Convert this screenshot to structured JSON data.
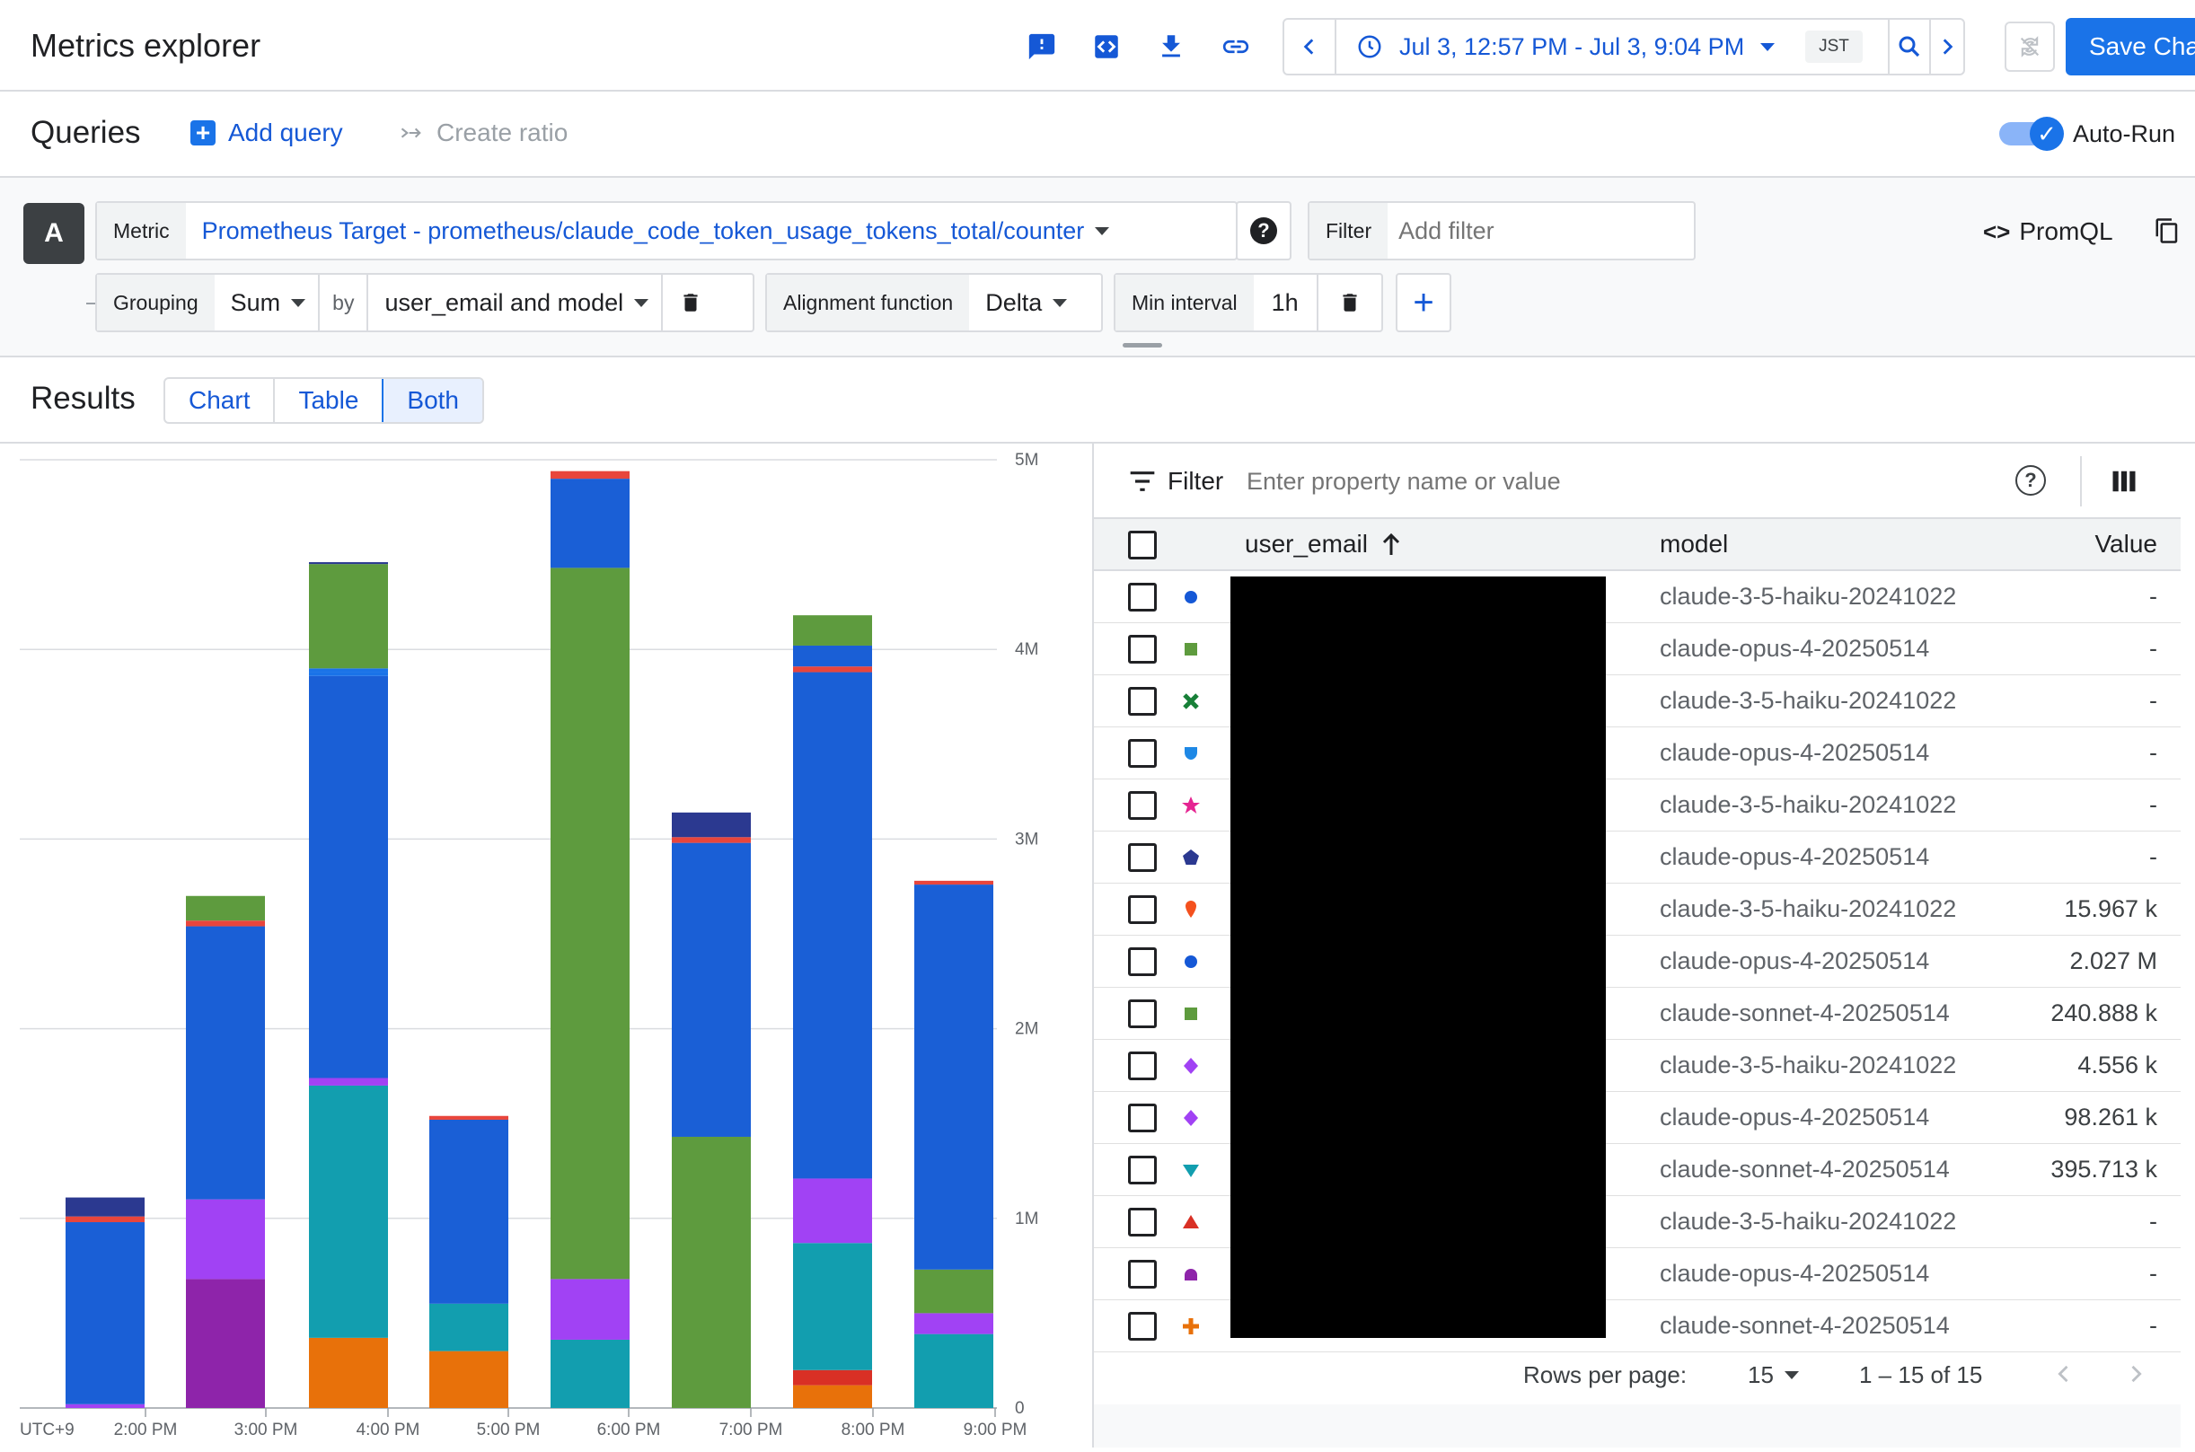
{
  "header": {
    "title": "Metrics explorer",
    "time_range": "Jul 3, 12:57 PM - Jul 3, 9:04 PM",
    "timezone": "JST",
    "save_label": "Save Chart"
  },
  "queries_bar": {
    "title": "Queries",
    "add_query": "Add query",
    "create_ratio": "Create ratio",
    "auto_run": "Auto-Run",
    "auto_run_on": true
  },
  "query": {
    "letter": "A",
    "metric_label": "Metric",
    "metric_value": "Prometheus Target - prometheus/claude_code_token_usage_tokens_total/counter",
    "filter_label": "Filter",
    "filter_placeholder": "Add filter",
    "promql": "PromQL",
    "grouping_label": "Grouping",
    "grouping_value": "Sum",
    "by_label": "by",
    "by_value": "user_email and model",
    "alignment_label": "Alignment function",
    "alignment_value": "Delta",
    "min_interval_label": "Min interval",
    "min_interval_value": "1h"
  },
  "results": {
    "title": "Results",
    "views": [
      "Chart",
      "Table",
      "Both"
    ],
    "selected_view": "Both"
  },
  "chart_data": {
    "type": "bar",
    "stacked": true,
    "categories": [
      "2:00 PM-",
      "2:00 PM",
      "3:00 PM",
      "4:00 PM",
      "5:00 PM",
      "6:00 PM",
      "7:00 PM",
      "8:00 PM",
      "9:00 PM"
    ],
    "x_tick_labels": [
      "UTC+9",
      "2:00 PM",
      "3:00 PM",
      "4:00 PM",
      "5:00 PM",
      "6:00 PM",
      "7:00 PM",
      "8:00 PM",
      "9:00 PM"
    ],
    "y_tick_labels": [
      "0",
      "1M",
      "2M",
      "3M",
      "4M",
      "5M"
    ],
    "ylim": [
      0,
      5000000
    ],
    "grid": true,
    "series": [
      {
        "color": "#e8710a",
        "values": [
          0,
          0,
          370000,
          300000,
          0,
          0,
          120000,
          0,
          0
        ]
      },
      {
        "color": "#d93025",
        "values": [
          0,
          0,
          0,
          0,
          0,
          0,
          80000,
          0,
          0
        ]
      },
      {
        "color": "#129eaf",
        "values": [
          0,
          0,
          1330000,
          250000,
          360000,
          0,
          670000,
          390000,
          0
        ]
      },
      {
        "color": "#8e24aa",
        "values": [
          0,
          680000,
          0,
          0,
          0,
          0,
          0,
          0,
          0
        ]
      },
      {
        "color": "#a142f4",
        "values": [
          20000,
          420000,
          40000,
          0,
          320000,
          0,
          340000,
          110000,
          0
        ]
      },
      {
        "color": "#5e9b3e",
        "values": [
          0,
          0,
          0,
          0,
          0,
          1430000,
          0,
          230000,
          0
        ]
      },
      {
        "color": "#1a5fd6",
        "values": [
          960000,
          1440000,
          2120000,
          970000,
          0,
          1550000,
          2670000,
          2030000,
          0
        ]
      },
      {
        "color": "#5e9b3e",
        "values": [
          0,
          0,
          0,
          0,
          3750000,
          0,
          0,
          0,
          0
        ]
      },
      {
        "color": "#1a73e8",
        "values": [
          0,
          0,
          20000,
          0,
          0,
          0,
          0,
          0,
          0
        ]
      },
      {
        "color": "#e8453c",
        "values": [
          30000,
          30000,
          0,
          20000,
          0,
          30000,
          30000,
          20000,
          0
        ]
      },
      {
        "color": "#1a5fd6",
        "values": [
          0,
          0,
          0,
          0,
          470000,
          0,
          110000,
          0,
          0
        ]
      },
      {
        "color": "#1a73e8",
        "values": [
          0,
          0,
          20000,
          0,
          0,
          0,
          0,
          0,
          0
        ]
      },
      {
        "color": "#e8453c",
        "values": [
          0,
          0,
          0,
          0,
          40000,
          0,
          0,
          0,
          0
        ]
      },
      {
        "color": "#5e9b3e",
        "values": [
          0,
          130000,
          550000,
          0,
          0,
          0,
          160000,
          0,
          0
        ]
      },
      {
        "color": "#2b3990",
        "values": [
          100000,
          0,
          10000,
          0,
          0,
          130000,
          0,
          0,
          0
        ]
      }
    ]
  },
  "table": {
    "filter_label": "Filter",
    "filter_placeholder": "Enter property name or value",
    "columns": [
      "user_email",
      "model",
      "Value"
    ],
    "rows": [
      {
        "marker": "circle",
        "color": "#1558d6",
        "model": "claude-3-5-haiku-20241022",
        "value": "-"
      },
      {
        "marker": "square",
        "color": "#5e9b3e",
        "model": "claude-opus-4-20250514",
        "value": "-"
      },
      {
        "marker": "x",
        "color": "#188038",
        "model": "claude-3-5-haiku-20241022",
        "value": "-"
      },
      {
        "marker": "shield",
        "color": "#1e88e5",
        "model": "claude-opus-4-20250514",
        "value": "-"
      },
      {
        "marker": "star",
        "color": "#e52592",
        "model": "claude-3-5-haiku-20241022",
        "value": "-"
      },
      {
        "marker": "pentagon",
        "color": "#2b3990",
        "model": "claude-opus-4-20250514",
        "value": "-"
      },
      {
        "marker": "pin",
        "color": "#f4511e",
        "model": "claude-3-5-haiku-20241022",
        "value": "15.967  k"
      },
      {
        "marker": "circle",
        "color": "#1558d6",
        "model": "claude-opus-4-20250514",
        "value": "2.027 M"
      },
      {
        "marker": "square",
        "color": "#5e9b3e",
        "model": "claude-sonnet-4-20250514",
        "value": "240.888  k"
      },
      {
        "marker": "diamond",
        "color": "#a142f4",
        "model": "claude-3-5-haiku-20241022",
        "value": "4.556  k"
      },
      {
        "marker": "diamond",
        "color": "#a142f4",
        "model": "claude-opus-4-20250514",
        "value": "98.261  k"
      },
      {
        "marker": "triangle-down",
        "color": "#129eaf",
        "model": "claude-sonnet-4-20250514",
        "value": "395.713  k"
      },
      {
        "marker": "triangle-up",
        "color": "#d93025",
        "model": "claude-3-5-haiku-20241022",
        "value": "-"
      },
      {
        "marker": "dome",
        "color": "#8e24aa",
        "model": "claude-opus-4-20250514",
        "value": "-"
      },
      {
        "marker": "plus",
        "color": "#e8710a",
        "model": "claude-sonnet-4-20250514",
        "value": "-"
      }
    ],
    "rows_per_page_label": "Rows per page:",
    "rows_per_page": "15",
    "range": "1 – 15 of 15"
  }
}
